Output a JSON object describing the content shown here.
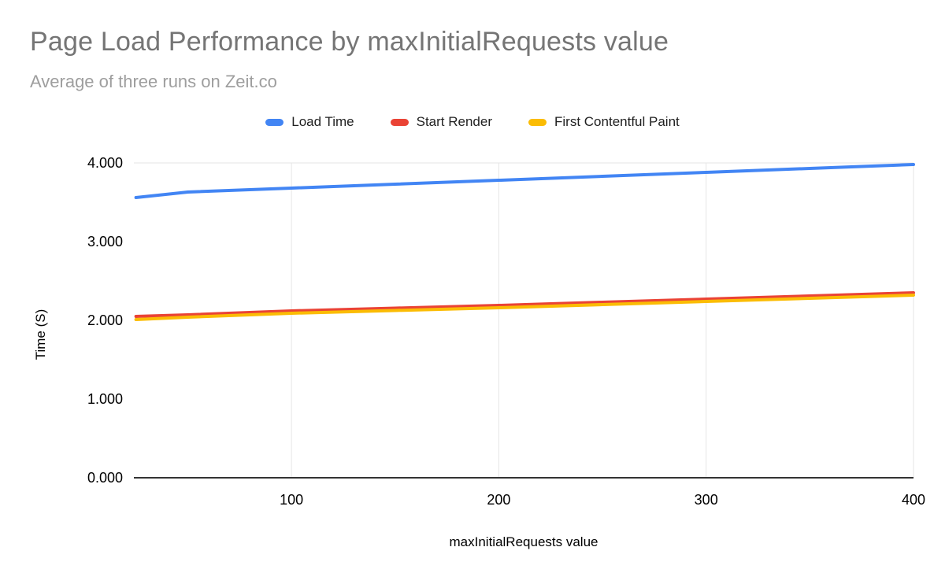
{
  "chart_data": {
    "type": "line",
    "title": "Page Load Performance by maxInitialRequests value",
    "subtitle": "Average of three runs on Zeit.co",
    "xlabel": "maxInitialRequests value",
    "ylabel": "Time (S)",
    "xlim": [
      24,
      400
    ],
    "ylim": [
      0,
      4
    ],
    "legend_position": "top",
    "grid": {
      "vertical_ticks": true,
      "horizontal_top_line": true
    },
    "x_ticks": [
      {
        "value": 100,
        "label": "100"
      },
      {
        "value": 200,
        "label": "200"
      },
      {
        "value": 300,
        "label": "300"
      },
      {
        "value": 400,
        "label": "400"
      }
    ],
    "y_ticks": [
      {
        "value": 0,
        "label": "0.000"
      },
      {
        "value": 1,
        "label": "1.000"
      },
      {
        "value": 2,
        "label": "2.000"
      },
      {
        "value": 3,
        "label": "3.000"
      },
      {
        "value": 4,
        "label": "4.000"
      }
    ],
    "x": [
      25,
      50,
      100,
      150,
      200,
      250,
      300,
      350,
      400
    ],
    "series": [
      {
        "name": "Load Time",
        "color": "#4285f4",
        "values": [
          3.56,
          3.63,
          3.68,
          3.73,
          3.78,
          3.83,
          3.88,
          3.93,
          3.98
        ]
      },
      {
        "name": "Start Render",
        "color": "#ea4335",
        "values": [
          2.05,
          2.07,
          2.12,
          2.155,
          2.19,
          2.23,
          2.27,
          2.31,
          2.35
        ]
      },
      {
        "name": "First Contentful Paint",
        "color": "#fbbc04",
        "values": [
          2.01,
          2.04,
          2.09,
          2.125,
          2.16,
          2.2,
          2.24,
          2.28,
          2.32
        ]
      }
    ],
    "colors": {
      "title": "#757575",
      "subtitle": "#9e9e9e",
      "gridline": "#e6e6e6",
      "axis_line": "#333333",
      "tick_label": "#000000"
    }
  }
}
